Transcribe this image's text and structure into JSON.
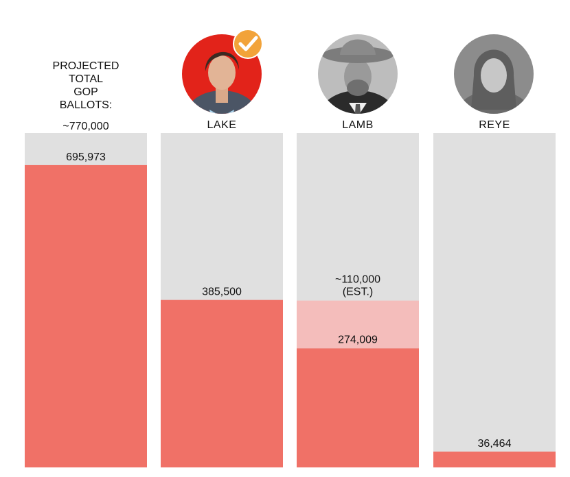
{
  "chart_data": {
    "type": "bar",
    "header": {
      "lines": [
        "PROJECTED",
        "TOTAL",
        "GOP",
        "BALLOTS:"
      ],
      "total_label": "~770,000"
    },
    "total": 770000,
    "categories": [
      "",
      "LAKE",
      "LAMB",
      "REYE"
    ],
    "series": [
      {
        "values": [
          695973,
          385500,
          274009,
          36464
        ]
      },
      {
        "values": [
          null,
          null,
          110000,
          null
        ]
      }
    ],
    "value_labels": [
      "695,973",
      "385,500",
      "274,009",
      "36,464"
    ],
    "estimate_labels": [
      null,
      null,
      [
        "~110,000",
        "(EST.)"
      ],
      null
    ],
    "winner": "LAKE",
    "colors": {
      "track": "#e0e0e0",
      "bar": "#f07167",
      "estimate": "#f4bdbb",
      "lake_photo_bg": "#e2231a",
      "photo_gray": "#4a4a4a",
      "check_badge": "#f2a33a"
    },
    "icons": {
      "lake": "candidate-photo-icon",
      "lamb": "candidate-photo-icon",
      "reye": "candidate-photo-icon",
      "check": "checkmark-icon"
    }
  }
}
